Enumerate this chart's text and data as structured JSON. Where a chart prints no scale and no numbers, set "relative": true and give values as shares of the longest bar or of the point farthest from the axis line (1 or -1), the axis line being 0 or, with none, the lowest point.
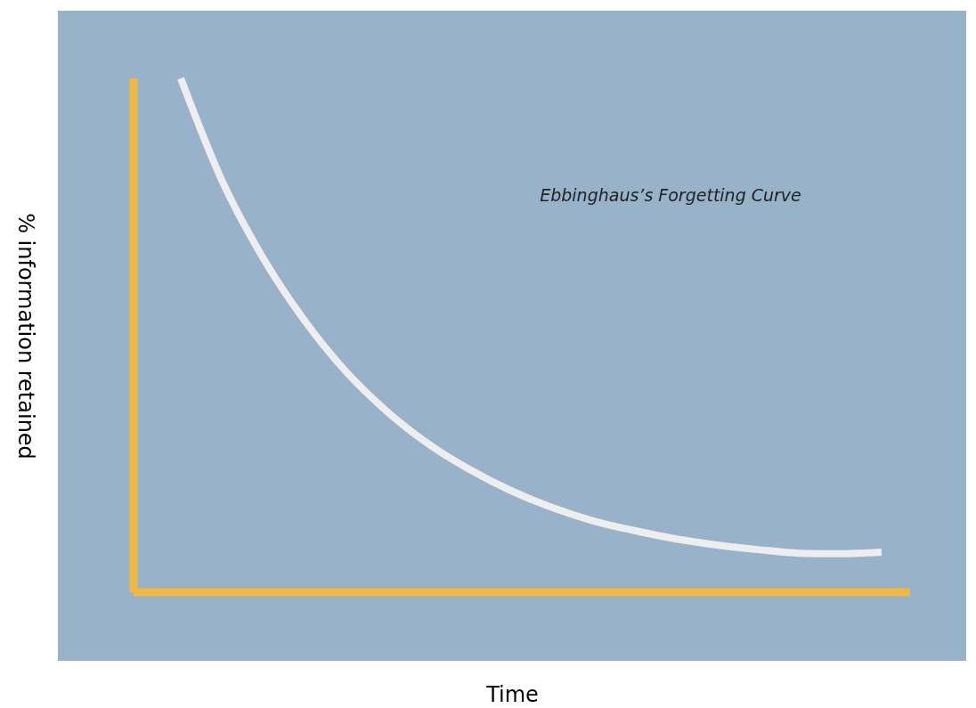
{
  "chart_data": {
    "type": "line",
    "relative": true,
    "xlabel": "Time",
    "ylabel": "% information retained",
    "annotations": [
      "Ebbinghaus’s Forgetting Curve"
    ],
    "categories": [
      null,
      null,
      null,
      null,
      null,
      null,
      null,
      null,
      null,
      null,
      null,
      null,
      null,
      null,
      null,
      null,
      null,
      null
    ],
    "series": [
      {
        "color": "#eeeeee",
        "values": [
          1.0,
          0.801,
          0.65,
          0.529,
          0.43,
          0.352,
          0.289,
          0.239,
          0.198,
          0.165,
          0.139,
          0.12,
          0.104,
          0.092,
          0.083,
          0.076,
          0.075,
          0.078
        ]
      }
    ],
    "grid": false,
    "marker": "none",
    "line_style": "solid"
  }
}
